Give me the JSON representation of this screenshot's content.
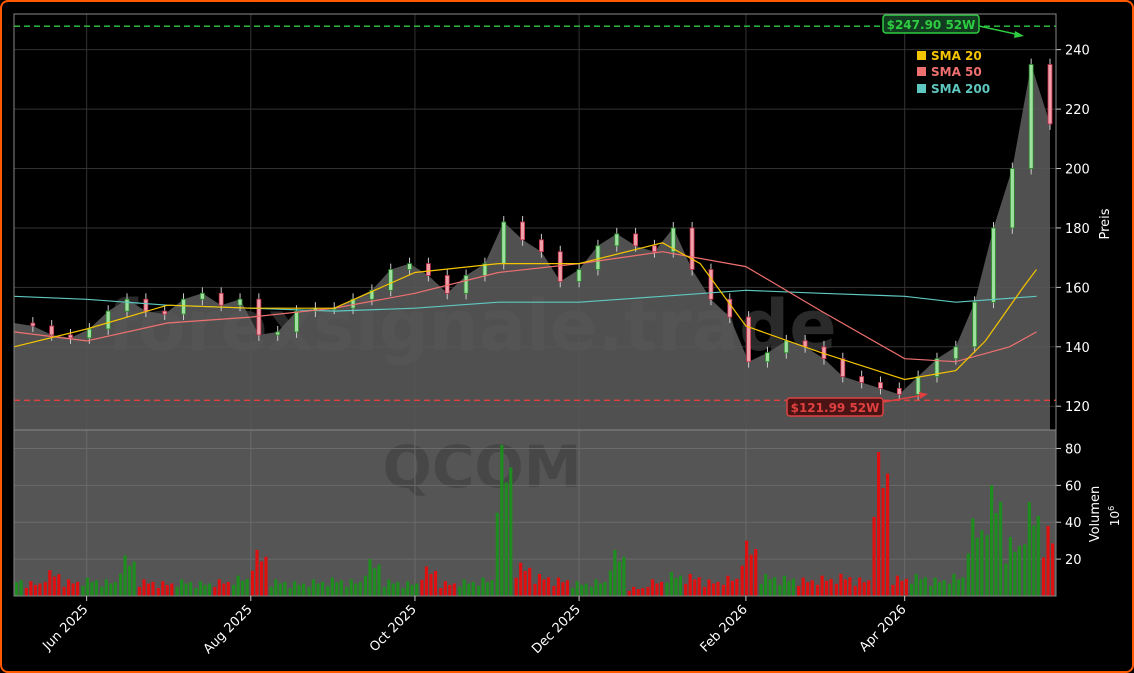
{
  "chart_data": {
    "type": "candlestick",
    "ticker": "QCOM",
    "watermark": "forexsignale.trade",
    "price_panel": {
      "ylabel": "Preis",
      "ylim": [
        112,
        252
      ],
      "yticks": [
        120,
        140,
        160,
        180,
        200,
        220,
        240
      ],
      "high_52w": {
        "value": 247.9,
        "label": "$247.90 52W",
        "color": "#2ecc40"
      },
      "low_52w": {
        "value": 121.99,
        "label": "$121.99 52W",
        "color": "#e04040"
      },
      "legend_position": "top-right"
    },
    "volume_panel": {
      "ylabel": "Volumen",
      "scale_label": "10",
      "scale_exponent": "6",
      "ylim": [
        0,
        90
      ],
      "yticks": [
        20,
        40,
        60,
        80
      ]
    },
    "x_axis": {
      "start": "2025-05-05",
      "end": "2026-05-25",
      "ticks": [
        {
          "date": "2025-06-01",
          "label": "Jun 2025"
        },
        {
          "date": "2025-08-01",
          "label": "Aug 2025"
        },
        {
          "date": "2025-10-01",
          "label": "Oct 2025"
        },
        {
          "date": "2025-12-01",
          "label": "Dec 2025"
        },
        {
          "date": "2026-02-01",
          "label": "Feb 2026"
        },
        {
          "date": "2026-04-01",
          "label": "Apr 2026"
        }
      ]
    },
    "close_series": [
      [
        "2025-05-05",
        148
      ],
      [
        "2025-05-12",
        147
      ],
      [
        "2025-05-19",
        144
      ],
      [
        "2025-05-26",
        143
      ],
      [
        "2025-06-02",
        146
      ],
      [
        "2025-06-09",
        152
      ],
      [
        "2025-06-16",
        156
      ],
      [
        "2025-06-23",
        152
      ],
      [
        "2025-06-30",
        151
      ],
      [
        "2025-07-07",
        156
      ],
      [
        "2025-07-14",
        158
      ],
      [
        "2025-07-21",
        154
      ],
      [
        "2025-07-28",
        156
      ],
      [
        "2025-08-04",
        144
      ],
      [
        "2025-08-11",
        145
      ],
      [
        "2025-08-18",
        152
      ],
      [
        "2025-08-25",
        153
      ],
      [
        "2025-09-01",
        153
      ],
      [
        "2025-09-08",
        156
      ],
      [
        "2025-09-15",
        159
      ],
      [
        "2025-09-22",
        166
      ],
      [
        "2025-09-29",
        168
      ],
      [
        "2025-10-06",
        164
      ],
      [
        "2025-10-13",
        158
      ],
      [
        "2025-10-20",
        164
      ],
      [
        "2025-10-27",
        168
      ],
      [
        "2025-11-03",
        182
      ],
      [
        "2025-11-10",
        176
      ],
      [
        "2025-11-17",
        172
      ],
      [
        "2025-11-24",
        162
      ],
      [
        "2025-12-01",
        166
      ],
      [
        "2025-12-08",
        174
      ],
      [
        "2025-12-15",
        178
      ],
      [
        "2025-12-22",
        174
      ],
      [
        "2025-12-29",
        172
      ],
      [
        "2026-01-05",
        180
      ],
      [
        "2026-01-12",
        166
      ],
      [
        "2026-01-19",
        156
      ],
      [
        "2026-01-26",
        150
      ],
      [
        "2026-02-02",
        135
      ],
      [
        "2026-02-09",
        138
      ],
      [
        "2026-02-16",
        142
      ],
      [
        "2026-02-23",
        140
      ],
      [
        "2026-03-02",
        136
      ],
      [
        "2026-03-09",
        130
      ],
      [
        "2026-03-16",
        128
      ],
      [
        "2026-03-23",
        126
      ],
      [
        "2026-03-30",
        124
      ],
      [
        "2026-04-06",
        130
      ],
      [
        "2026-04-13",
        136
      ],
      [
        "2026-04-20",
        140
      ],
      [
        "2026-04-27",
        155
      ],
      [
        "2026-05-04",
        180
      ],
      [
        "2026-05-11",
        200
      ],
      [
        "2026-05-18",
        235
      ],
      [
        "2026-05-25",
        215
      ]
    ],
    "sma_20": {
      "name": "SMA 20",
      "color": "#f5c400",
      "points": [
        [
          "2025-05-05",
          140
        ],
        [
          "2025-06-01",
          146
        ],
        [
          "2025-07-01",
          154
        ],
        [
          "2025-08-01",
          153
        ],
        [
          "2025-09-01",
          153
        ],
        [
          "2025-10-01",
          165
        ],
        [
          "2025-11-01",
          168
        ],
        [
          "2025-12-01",
          168
        ],
        [
          "2026-01-01",
          175
        ],
        [
          "2026-01-15",
          168
        ],
        [
          "2026-02-01",
          147
        ],
        [
          "2026-03-01",
          138
        ],
        [
          "2026-04-01",
          129
        ],
        [
          "2026-04-20",
          132
        ],
        [
          "2026-05-01",
          142
        ],
        [
          "2026-05-15",
          160
        ],
        [
          "2026-05-20",
          166
        ]
      ]
    },
    "sma_50": {
      "name": "SMA 50",
      "color": "#f07070",
      "points": [
        [
          "2025-05-05",
          145
        ],
        [
          "2025-06-01",
          142
        ],
        [
          "2025-07-01",
          148
        ],
        [
          "2025-08-01",
          150
        ],
        [
          "2025-09-01",
          153
        ],
        [
          "2025-10-01",
          158
        ],
        [
          "2025-11-01",
          165
        ],
        [
          "2025-12-01",
          168
        ],
        [
          "2026-01-01",
          172
        ],
        [
          "2026-02-01",
          167
        ],
        [
          "2026-03-01",
          152
        ],
        [
          "2026-04-01",
          136
        ],
        [
          "2026-04-20",
          135
        ],
        [
          "2026-05-10",
          140
        ],
        [
          "2026-05-20",
          145
        ]
      ]
    },
    "sma_200": {
      "name": "SMA 200",
      "color": "#5ec8c0",
      "points": [
        [
          "2025-05-05",
          157
        ],
        [
          "2025-06-01",
          156
        ],
        [
          "2025-07-01",
          154
        ],
        [
          "2025-08-01",
          153
        ],
        [
          "2025-09-01",
          152
        ],
        [
          "2025-10-01",
          153
        ],
        [
          "2025-11-01",
          155
        ],
        [
          "2025-12-01",
          155
        ],
        [
          "2026-01-01",
          157
        ],
        [
          "2026-02-01",
          159
        ],
        [
          "2026-03-01",
          158
        ],
        [
          "2026-04-01",
          157
        ],
        [
          "2026-04-20",
          155
        ],
        [
          "2026-05-20",
          157
        ]
      ]
    },
    "volume_series": [
      [
        "2025-05-05",
        10
      ],
      [
        "2025-05-12",
        8
      ],
      [
        "2025-05-19",
        14
      ],
      [
        "2025-05-26",
        9
      ],
      [
        "2025-06-02",
        10
      ],
      [
        "2025-06-09",
        9
      ],
      [
        "2025-06-16",
        22
      ],
      [
        "2025-06-23",
        9
      ],
      [
        "2025-06-30",
        8
      ],
      [
        "2025-07-07",
        9
      ],
      [
        "2025-07-14",
        8
      ],
      [
        "2025-07-21",
        9
      ],
      [
        "2025-07-28",
        11
      ],
      [
        "2025-08-04",
        25
      ],
      [
        "2025-08-11",
        9
      ],
      [
        "2025-08-18",
        8
      ],
      [
        "2025-08-25",
        9
      ],
      [
        "2025-09-01",
        10
      ],
      [
        "2025-09-08",
        9
      ],
      [
        "2025-09-15",
        20
      ],
      [
        "2025-09-22",
        9
      ],
      [
        "2025-09-29",
        8
      ],
      [
        "2025-10-06",
        16
      ],
      [
        "2025-10-13",
        8
      ],
      [
        "2025-10-20",
        9
      ],
      [
        "2025-10-27",
        10
      ],
      [
        "2025-11-03",
        82
      ],
      [
        "2025-11-10",
        18
      ],
      [
        "2025-11-17",
        12
      ],
      [
        "2025-11-24",
        10
      ],
      [
        "2025-12-01",
        8
      ],
      [
        "2025-12-08",
        9
      ],
      [
        "2025-12-15",
        25
      ],
      [
        "2025-12-22",
        5
      ],
      [
        "2025-12-29",
        9
      ],
      [
        "2026-01-05",
        13
      ],
      [
        "2026-01-12",
        12
      ],
      [
        "2026-01-19",
        9
      ],
      [
        "2026-01-26",
        11
      ],
      [
        "2026-02-02",
        30
      ],
      [
        "2026-02-09",
        12
      ],
      [
        "2026-02-16",
        11
      ],
      [
        "2026-02-23",
        10
      ],
      [
        "2026-03-02",
        11
      ],
      [
        "2026-03-09",
        12
      ],
      [
        "2026-03-16",
        10
      ],
      [
        "2026-03-23",
        78
      ],
      [
        "2026-03-30",
        11
      ],
      [
        "2026-04-06",
        12
      ],
      [
        "2026-04-13",
        10
      ],
      [
        "2026-04-20",
        12
      ],
      [
        "2026-04-27",
        42
      ],
      [
        "2026-05-04",
        60
      ],
      [
        "2026-05-11",
        32
      ],
      [
        "2026-05-18",
        51
      ],
      [
        "2026-05-25",
        38
      ]
    ]
  }
}
